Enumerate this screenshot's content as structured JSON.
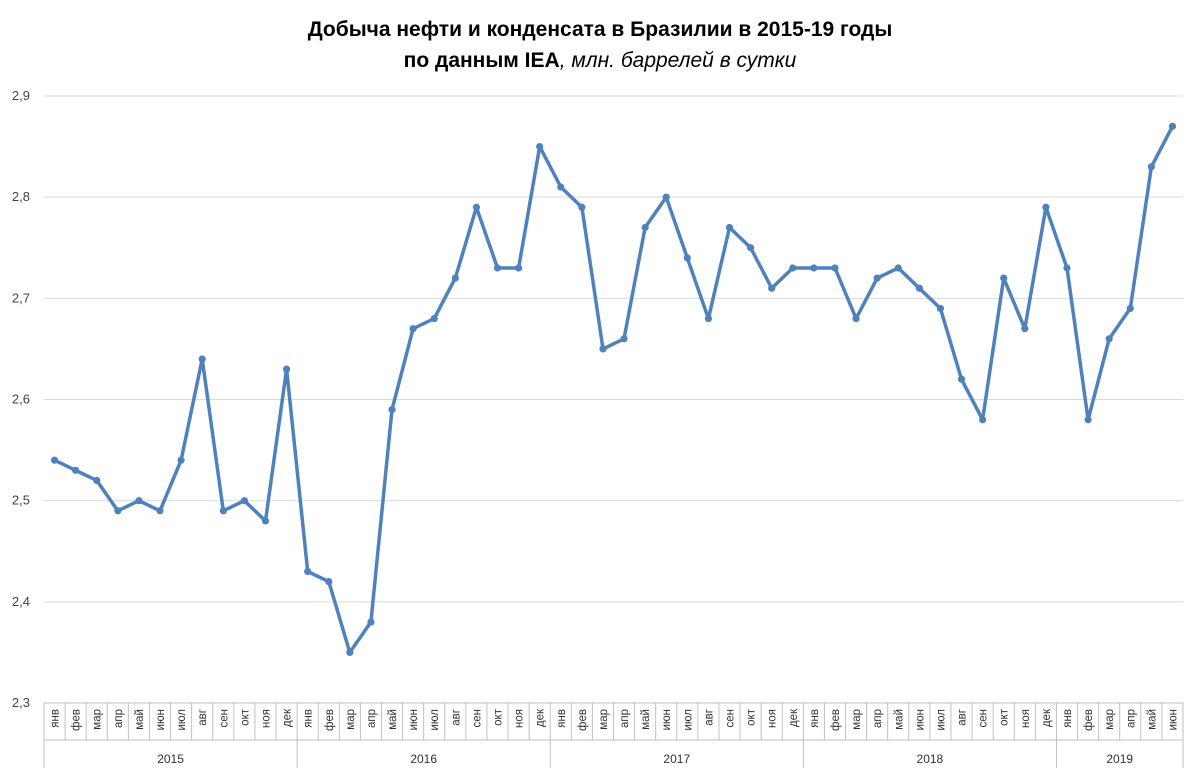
{
  "chart_data": {
    "type": "line",
    "title_line1": "Добыча нефти и конденсата в Бразилии в 2015-19 годы",
    "title_line2_bold": "по данным IEA",
    "title_line2_italic": ", млн. баррелей в сутки",
    "xlabel": "",
    "ylabel": "",
    "ylim": [
      2.3,
      2.9
    ],
    "yticks": [
      "2,3",
      "2,4",
      "2,5",
      "2,6",
      "2,7",
      "2,8",
      "2,9"
    ],
    "years": [
      "2015",
      "2016",
      "2017",
      "2018",
      "2019"
    ],
    "months": [
      "янв",
      "фев",
      "мар",
      "апр",
      "май",
      "июн",
      "июл",
      "авг",
      "сен",
      "окт",
      "ноя",
      "дек"
    ],
    "series": [
      {
        "values": [
          2.54,
          2.53,
          2.52,
          2.49,
          2.5,
          2.49,
          2.54,
          2.64,
          2.49,
          2.5,
          2.48,
          2.63,
          2.43,
          2.42,
          2.35,
          2.38,
          2.59,
          2.67,
          2.68,
          2.72,
          2.79,
          2.73,
          2.73,
          2.85,
          2.81,
          2.79,
          2.65,
          2.66,
          2.77,
          2.8,
          2.74,
          2.68,
          2.77,
          2.75,
          2.71,
          2.73,
          2.73,
          2.73,
          2.68,
          2.72,
          2.73,
          2.71,
          2.69,
          2.62,
          2.58,
          2.72,
          2.67,
          2.79,
          2.73,
          2.58,
          2.66,
          2.69,
          2.83,
          2.87
        ]
      }
    ],
    "grid": true,
    "legend": "none",
    "line_color": "#4f81bd",
    "grid_color": "#d9d9d9",
    "axis_color": "#bfbfbf"
  }
}
